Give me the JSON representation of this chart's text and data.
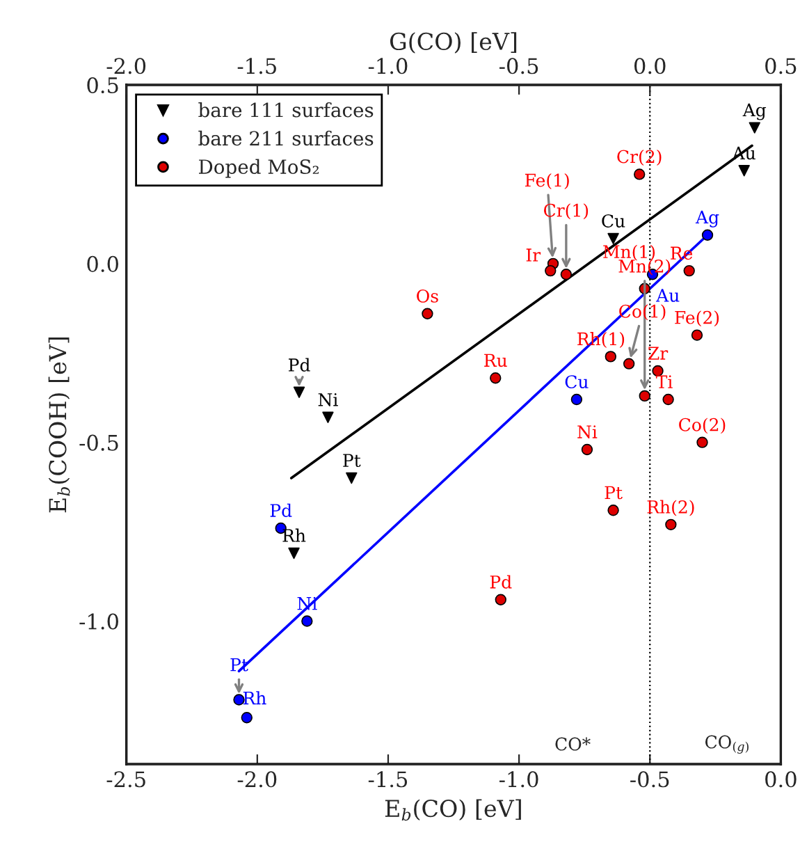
{
  "chart_data": {
    "type": "scatter",
    "xlabel": "E$_{b}$(CO) [eV]",
    "ylabel": "E$_{b}$(COOH) [eV]",
    "x2label": "G(CO) [eV]",
    "xlim": [
      -2.5,
      0.0
    ],
    "xticks": [
      -2.5,
      {
        "value": -2.0,
        "label": "-2.0"
      },
      -1.5,
      {
        "value": -1.0,
        "label": "-1.0"
      },
      -0.5,
      {
        "value": 0.0,
        "label": "0.0"
      }
    ],
    "x2lim": [
      -2.0,
      0.5
    ],
    "x2ticks": [
      {
        "value": -2.0,
        "label": "-2.0"
      },
      -1.5,
      {
        "value": -1.0,
        "label": "-1.0"
      },
      -0.5,
      {
        "value": 0.0,
        "label": "0.0"
      },
      0.5
    ],
    "ylim": [
      -1.4,
      0.5
    ],
    "yticks": [
      {
        "value": -1.0,
        "label": "-1.0"
      },
      -0.5,
      {
        "value": 0.0,
        "label": "0.0"
      },
      0.5
    ],
    "grid": false,
    "legend": "top left",
    "series": [
      {
        "name": "bare 111 surfaces",
        "marker": "triangle",
        "color": "#000000",
        "x": [
          -0.1,
          -0.14,
          -0.64,
          -1.84,
          -1.73,
          -1.64,
          -1.86
        ],
        "values": [
          0.38,
          0.26,
          0.07,
          -0.36,
          -0.43,
          -0.6,
          -0.81
        ],
        "value_labels": [
          "Ag",
          "Au",
          "Cu",
          "Pd",
          "Ni",
          "Pt",
          "Rh"
        ]
      },
      {
        "name": "bare 211 surfaces",
        "marker": "circle",
        "color": "#0000ff",
        "x": [
          -0.28,
          -0.49,
          -0.78,
          -1.91,
          -1.81,
          -2.07,
          -2.04
        ],
        "values": [
          0.08,
          -0.03,
          -0.38,
          -0.74,
          -1.0,
          -1.22,
          -1.27
        ],
        "value_labels": [
          "Ag",
          "Au",
          "Cu",
          "Pd",
          "Ni",
          "Pt",
          "Rh"
        ]
      },
      {
        "name": "Doped MoS₂",
        "marker": "circle",
        "color": "#dd0000",
        "x": [
          -1.35,
          -0.54,
          -0.87,
          -0.88,
          -0.82,
          -0.52,
          -0.52,
          -0.35,
          -0.32,
          -0.58,
          -0.65,
          -0.47,
          -0.43,
          -1.09,
          -0.74,
          -0.3,
          -0.64,
          -0.42,
          -1.07
        ],
        "values": [
          -0.14,
          0.25,
          0.0,
          -0.02,
          -0.03,
          -0.07,
          -0.37,
          -0.02,
          -0.2,
          -0.28,
          -0.26,
          -0.3,
          -0.38,
          -0.32,
          -0.52,
          -0.5,
          -0.69,
          -0.73,
          -0.94
        ],
        "value_labels": [
          "Os",
          "Cr(2)",
          "Fe(1)",
          "Ir",
          "Cr(1)",
          "Mn(1)",
          "Mn(2)",
          "Re",
          "Fe(2)",
          "Co(1)",
          "Rh(1)",
          "Zr",
          "Ti",
          "Ru",
          "Ni",
          "Co(2)",
          "Pt",
          "Rh(2)",
          "Pd"
        ]
      },
      {
        "type": "line",
        "color": "#000000",
        "x": [
          -1.87,
          -0.11
        ],
        "values": [
          -0.6,
          0.33
        ]
      },
      {
        "type": "line",
        "color": "#0000ff",
        "x": [
          -2.07,
          -0.28
        ],
        "values": [
          -1.14,
          0.08
        ]
      }
    ],
    "ref_lines": [
      {
        "axis": "x",
        "value": -0.5,
        "color": "#000000",
        "line_style": "dotted"
      }
    ],
    "annotations": [
      "CO*",
      "CO$_{(g)}$"
    ]
  }
}
